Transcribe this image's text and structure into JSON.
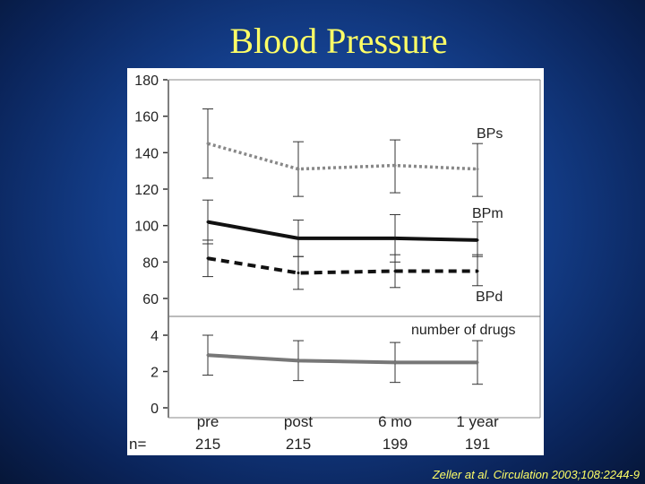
{
  "title": "Blood Pressure",
  "citation": "Zeller at al. Circulation 2003;108:2244-9",
  "chart_data": [
    {
      "type": "line",
      "panel": "blood-pressure",
      "x": [
        "pre",
        "post",
        "6 mo",
        "1 year"
      ],
      "ylim": [
        60,
        180
      ],
      "yticks": [
        60,
        80,
        100,
        120,
        140,
        160,
        180
      ],
      "series": [
        {
          "name": "BPs",
          "style": "dotted",
          "color": "#888888",
          "values": [
            145,
            131,
            133,
            131
          ],
          "err_low": [
            126,
            116,
            118,
            116
          ],
          "err_high": [
            164,
            146,
            147,
            145
          ]
        },
        {
          "name": "BPm",
          "style": "solid",
          "color": "#111111",
          "values": [
            102,
            93,
            93,
            92
          ],
          "err_low": [
            90,
            83,
            80,
            83
          ],
          "err_high": [
            114,
            103,
            106,
            102
          ]
        },
        {
          "name": "BPd",
          "style": "dashed",
          "color": "#111111",
          "values": [
            82,
            74,
            75,
            75
          ],
          "err_low": [
            72,
            65,
            66,
            67
          ],
          "err_high": [
            92,
            83,
            84,
            84
          ]
        }
      ]
    },
    {
      "type": "line",
      "panel": "drugs",
      "x": [
        "pre",
        "post",
        "6 mo",
        "1 year"
      ],
      "ylim": [
        0,
        4
      ],
      "yticks": [
        0,
        2,
        4
      ],
      "series": [
        {
          "name": "number of drugs",
          "style": "solid",
          "color": "#777777",
          "values": [
            2.9,
            2.6,
            2.5,
            2.5
          ],
          "err_low": [
            1.8,
            1.5,
            1.4,
            1.3
          ],
          "err_high": [
            4.0,
            3.7,
            3.6,
            3.7
          ]
        }
      ]
    }
  ],
  "n_label": "n=",
  "n_values": [
    "215",
    "215",
    "199",
    "191"
  ]
}
